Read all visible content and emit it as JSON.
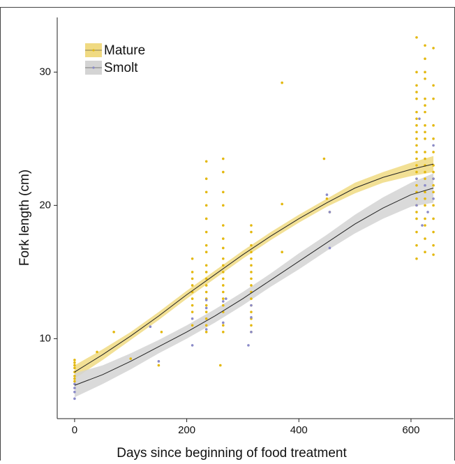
{
  "chart_data": {
    "type": "scatter",
    "x_label": "Days since beginning of food treatment",
    "y_label": "Fork length (cm)",
    "xlim": [
      -31,
      676
    ],
    "ylim": [
      4,
      34.1
    ],
    "xticks": [
      0,
      200,
      400,
      600
    ],
    "yticks": [
      10,
      20,
      30
    ],
    "grid": false,
    "legend": "top-left",
    "series": [
      {
        "name": "Mature",
        "color": "#e3b80f",
        "band_color": "#f0da82",
        "line_color": "#222222",
        "x": [
          0,
          0,
          0,
          0,
          0,
          0,
          0,
          0,
          70,
          40,
          100,
          150,
          155,
          210,
          210,
          210,
          210,
          210,
          210,
          210,
          210,
          210,
          235,
          235,
          235,
          235,
          235,
          235,
          235,
          235,
          235,
          235,
          235,
          235,
          235,
          235,
          235,
          235,
          235,
          235,
          235,
          265,
          265,
          265,
          265,
          265,
          265,
          265,
          265,
          265,
          265,
          265,
          265,
          265,
          265,
          265,
          265,
          265,
          265,
          260,
          315,
          315,
          315,
          315,
          315,
          315,
          315,
          315,
          315,
          315,
          315,
          315,
          315,
          315,
          315,
          315,
          370,
          370,
          370,
          445,
          450,
          455,
          610,
          610,
          610,
          610,
          610,
          610,
          610,
          610,
          610,
          610,
          610,
          610,
          610,
          610,
          610,
          610,
          610,
          610,
          610,
          610,
          610,
          610,
          610,
          610,
          610,
          625,
          625,
          625,
          625,
          625,
          625,
          625,
          625,
          625,
          625,
          625,
          625,
          625,
          625,
          625,
          625,
          625,
          625,
          625,
          625,
          625,
          625,
          640,
          640,
          640,
          640,
          640,
          640,
          640,
          640,
          640,
          640,
          640,
          640,
          640,
          640,
          640,
          640
        ],
        "values": [
          7.0,
          7.5,
          7.8,
          8.0,
          8.2,
          8.4,
          6.8,
          7.2,
          10.5,
          9.0,
          8.5,
          8.0,
          10.5,
          14.5,
          15.0,
          13.5,
          12.5,
          11.0,
          16.0,
          14.0,
          13.0,
          12.0,
          23.3,
          22.0,
          21.0,
          20.0,
          19.0,
          18.0,
          17.0,
          16.5,
          15.5,
          15.0,
          14.5,
          14.0,
          13.5,
          13.0,
          12.5,
          12.0,
          11.5,
          11.0,
          10.5,
          23.5,
          22.5,
          21.0,
          20.0,
          18.5,
          17.5,
          16.8,
          16.0,
          15.5,
          15.0,
          14.5,
          14.0,
          13.5,
          13.0,
          12.5,
          12.0,
          11.0,
          10.5,
          8.0,
          18.5,
          18.0,
          17.0,
          16.5,
          16.0,
          15.5,
          15.0,
          14.5,
          14.0,
          13.5,
          13.0,
          12.5,
          12.0,
          11.5,
          11.0,
          10.5,
          29.2,
          20.1,
          16.5,
          23.5,
          20.5,
          19.5,
          32.6,
          30.0,
          29.0,
          28.5,
          28.0,
          27.0,
          26.5,
          26.0,
          25.5,
          25.0,
          24.5,
          24.0,
          23.5,
          23.0,
          22.5,
          22.0,
          21.5,
          21.0,
          20.5,
          20.0,
          19.5,
          19.0,
          18.0,
          17.0,
          16.0,
          32.0,
          31.0,
          30.0,
          29.5,
          28.0,
          27.5,
          27.0,
          26.0,
          25.5,
          25.0,
          24.0,
          23.5,
          23.0,
          22.5,
          22.0,
          21.0,
          20.5,
          20.0,
          19.0,
          18.5,
          17.5,
          16.5,
          31.8,
          29.0,
          28.0,
          26.0,
          25.0,
          24.0,
          23.0,
          22.5,
          22.0,
          21.5,
          21.0,
          20.0,
          19.0,
          18.0,
          17.0,
          16.3
        ],
        "fit": {
          "x": [
            0,
            50,
            100,
            150,
            200,
            250,
            300,
            350,
            400,
            450,
            500,
            550,
            600,
            640
          ],
          "values": [
            7.5,
            8.8,
            10.2,
            11.7,
            13.3,
            14.8,
            16.3,
            17.7,
            19.0,
            20.2,
            21.3,
            22.1,
            22.7,
            23.1
          ],
          "lower": [
            7.0,
            8.4,
            9.9,
            11.4,
            13.0,
            14.5,
            16.0,
            17.4,
            18.7,
            19.9,
            20.9,
            21.7,
            22.2,
            22.5
          ],
          "upper": [
            8.0,
            9.2,
            10.5,
            12.0,
            13.6,
            15.1,
            16.6,
            18.0,
            19.3,
            20.5,
            21.7,
            22.5,
            23.2,
            23.7
          ]
        }
      },
      {
        "name": "Smolt",
        "color": "#8a8ac8",
        "band_color": "#d4d4d4",
        "line_color": "#222222",
        "x": [
          0,
          0,
          0,
          0,
          135,
          150,
          210,
          210,
          235,
          235,
          235,
          265,
          265,
          270,
          310,
          315,
          315,
          315,
          450,
          455,
          455,
          610,
          610,
          620,
          625,
          630,
          640,
          640,
          615,
          640
        ],
        "values": [
          6.0,
          6.3,
          5.5,
          6.6,
          10.9,
          8.3,
          9.5,
          11.5,
          12.9,
          12.3,
          10.7,
          12.8,
          11.2,
          13.0,
          9.5,
          11.6,
          10.5,
          12.5,
          20.8,
          19.5,
          16.8,
          20.0,
          22.0,
          18.5,
          21.5,
          19.5,
          22.0,
          20.5,
          26.5,
          24.5
        ],
        "fit": {
          "x": [
            0,
            50,
            100,
            150,
            200,
            250,
            300,
            350,
            400,
            450,
            500,
            550,
            600,
            640
          ],
          "values": [
            6.5,
            7.3,
            8.3,
            9.4,
            10.5,
            11.7,
            13.0,
            14.4,
            15.8,
            17.2,
            18.6,
            19.8,
            20.8,
            21.3
          ],
          "lower": [
            5.6,
            6.6,
            7.7,
            8.9,
            10.0,
            11.2,
            12.5,
            13.9,
            15.2,
            16.6,
            17.9,
            19.0,
            19.9,
            20.2
          ],
          "upper": [
            7.4,
            8.0,
            8.9,
            9.9,
            11.0,
            12.2,
            13.5,
            14.9,
            16.4,
            17.8,
            19.3,
            20.6,
            21.7,
            22.4
          ]
        }
      }
    ]
  }
}
